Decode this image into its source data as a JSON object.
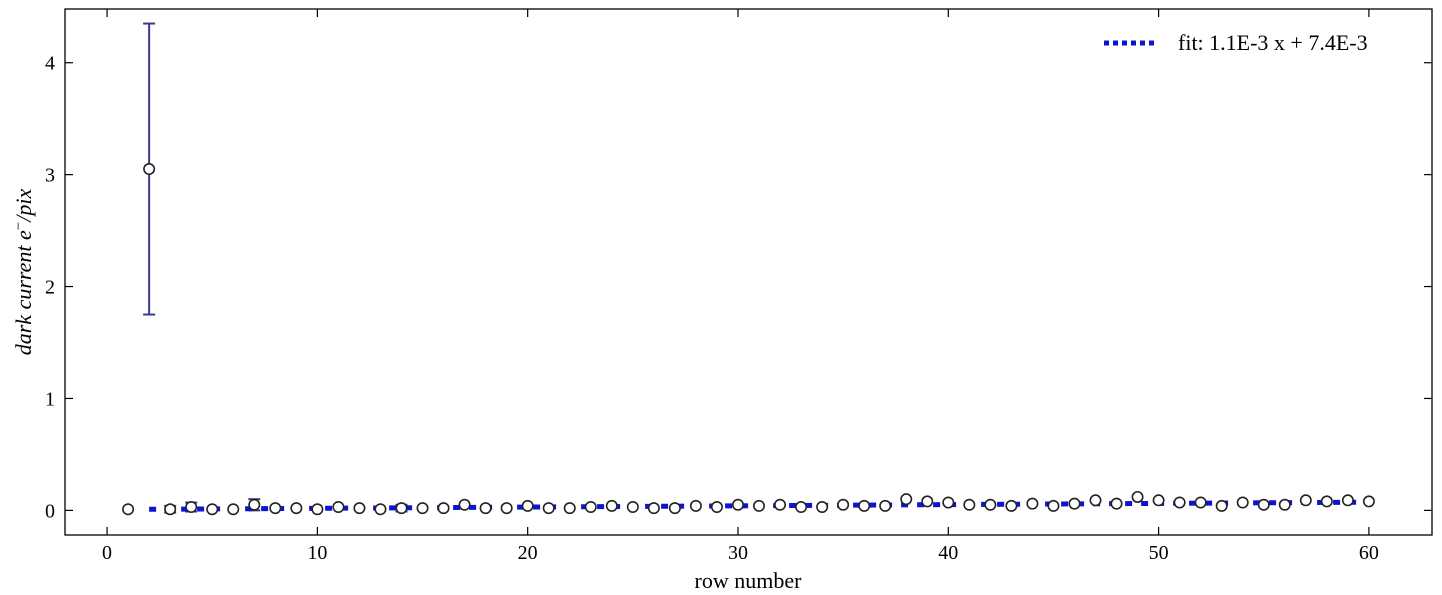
{
  "colors": {
    "fit": "#0a14d4",
    "errorbar": "#3a3a8c",
    "marker_edge": "#222222",
    "marker_face": "#ffffff"
  },
  "chart_data": {
    "type": "scatter",
    "xlabel": "row number",
    "ylabel_main": "dark current e",
    "ylabel_sup": "−",
    "ylabel_tail": "/pix",
    "xlim": [
      -2,
      63
    ],
    "ylim": [
      -0.22,
      4.48
    ],
    "xticks": [
      0,
      10,
      20,
      30,
      40,
      50,
      60
    ],
    "yticks": [
      0,
      1,
      2,
      3,
      4
    ],
    "grid": false,
    "legend": {
      "position": "top-right",
      "label": "fit: 1.1E-3 x + 7.4E-3"
    },
    "fit": {
      "slope": 0.0011,
      "intercept": 0.0074,
      "x_range": [
        2,
        60
      ],
      "style": "dotted"
    },
    "series": [
      {
        "x": [
          1,
          2,
          3,
          4,
          5,
          6,
          7,
          8,
          9,
          10,
          11,
          12,
          13,
          14,
          15,
          16,
          17,
          18,
          19,
          20,
          21,
          22,
          23,
          24,
          25,
          26,
          27,
          28,
          29,
          30,
          31,
          32,
          33,
          34,
          35,
          36,
          37,
          38,
          39,
          40,
          41,
          42,
          43,
          44,
          45,
          46,
          47,
          48,
          49,
          50,
          51,
          52,
          53,
          54,
          55,
          56,
          57,
          58,
          59,
          60
        ],
        "y": [
          0.01,
          3.05,
          0.01,
          0.03,
          0.01,
          0.01,
          0.05,
          0.02,
          0.02,
          0.01,
          0.03,
          0.02,
          0.01,
          0.02,
          0.02,
          0.02,
          0.05,
          0.02,
          0.02,
          0.04,
          0.02,
          0.02,
          0.03,
          0.04,
          0.03,
          0.02,
          0.02,
          0.04,
          0.03,
          0.05,
          0.04,
          0.05,
          0.03,
          0.03,
          0.05,
          0.04,
          0.04,
          0.1,
          0.08,
          0.07,
          0.05,
          0.05,
          0.04,
          0.06,
          0.04,
          0.06,
          0.09,
          0.06,
          0.12,
          0.09,
          0.07,
          0.07,
          0.04,
          0.07,
          0.05,
          0.05,
          0.09,
          0.08,
          0.09,
          0.08
        ],
        "yerr": [
          0,
          1.3,
          0.03,
          0.04,
          0,
          0,
          0.05,
          0,
          0,
          0,
          0,
          0,
          0,
          0.03,
          0,
          0,
          0,
          0,
          0,
          0,
          0,
          0,
          0,
          0,
          0,
          0,
          0,
          0,
          0,
          0,
          0,
          0,
          0,
          0,
          0,
          0,
          0,
          0,
          0,
          0,
          0,
          0,
          0,
          0,
          0,
          0,
          0,
          0,
          0,
          0,
          0,
          0,
          0,
          0,
          0,
          0,
          0,
          0,
          0,
          0
        ]
      }
    ]
  }
}
